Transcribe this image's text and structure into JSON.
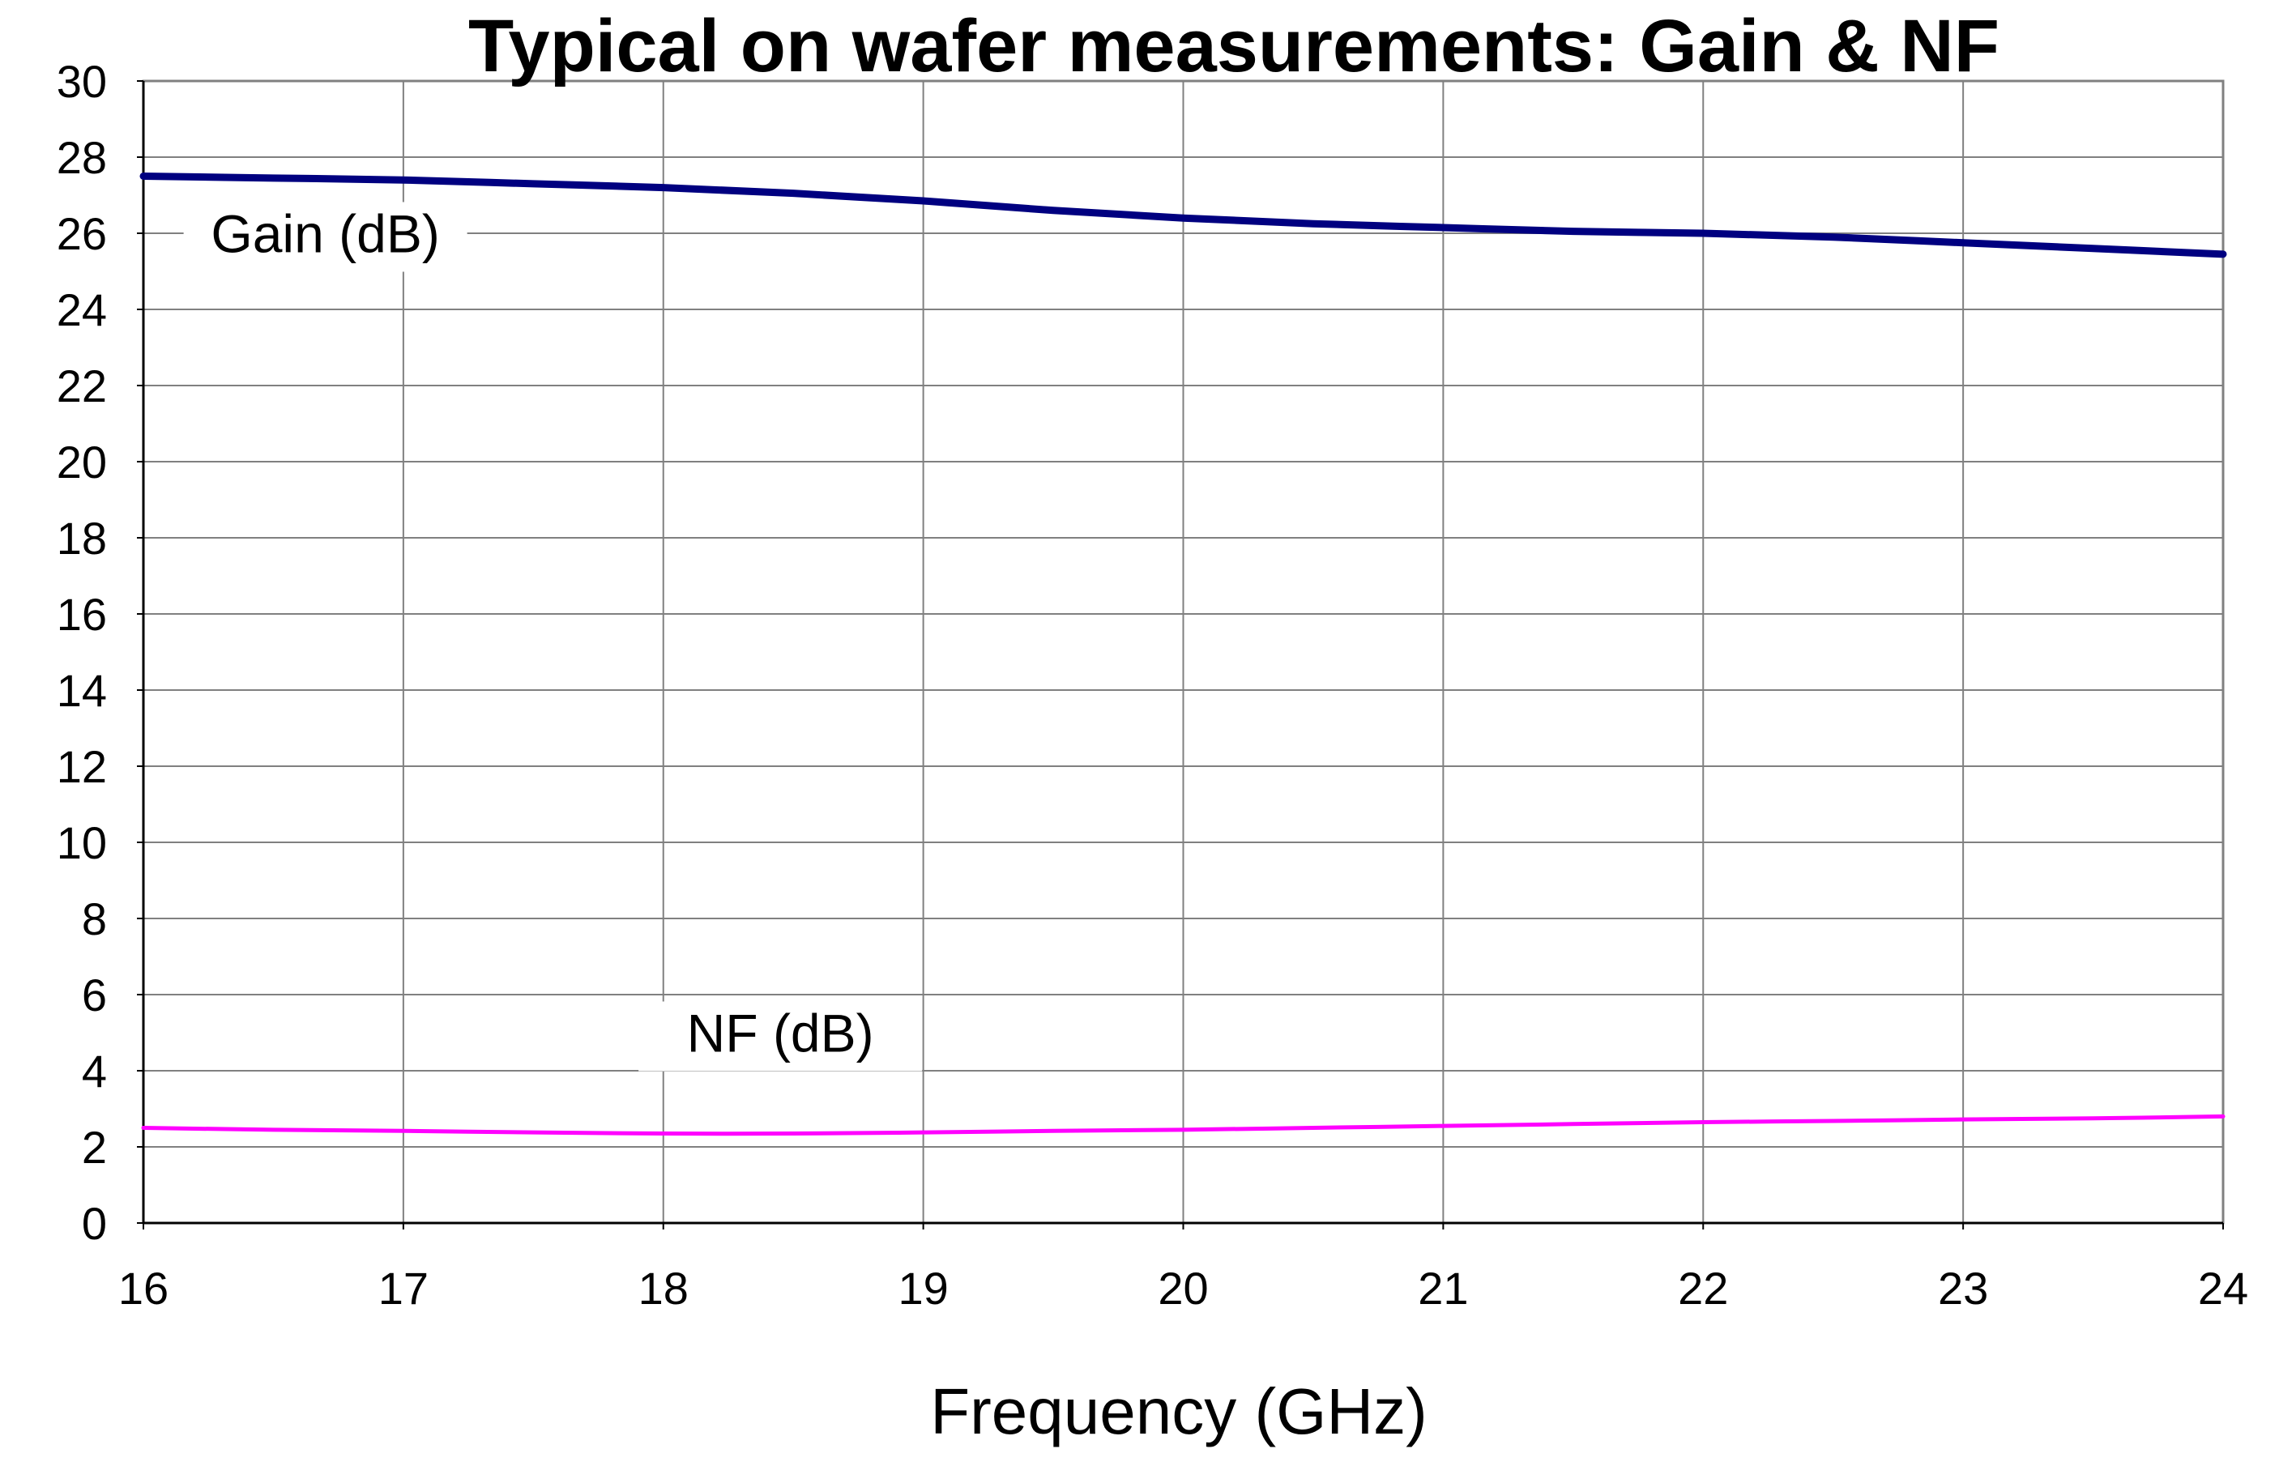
{
  "chart_data": {
    "type": "line",
    "title": "Typical on wafer measurements: Gain & NF",
    "xlabel": "Frequency (GHz)",
    "ylabel": "",
    "xlim": [
      16,
      24
    ],
    "ylim": [
      0,
      30
    ],
    "x_ticks": [
      "16",
      "17",
      "18",
      "19",
      "20",
      "21",
      "22",
      "23",
      "24"
    ],
    "y_ticks": [
      "0",
      "2",
      "4",
      "6",
      "8",
      "10",
      "12",
      "14",
      "16",
      "18",
      "20",
      "22",
      "24",
      "26",
      "28",
      "30"
    ],
    "grid": true,
    "series": [
      {
        "name": "Gain (dB)",
        "color": "#000080",
        "x": [
          16,
          16.5,
          17,
          17.5,
          18,
          18.5,
          19,
          19.5,
          20,
          20.5,
          21,
          21.5,
          22,
          22.5,
          23,
          23.5,
          24
        ],
        "y": [
          27.5,
          27.45,
          27.4,
          27.3,
          27.2,
          27.05,
          26.85,
          26.6,
          26.4,
          26.25,
          26.15,
          26.05,
          26.0,
          25.9,
          25.75,
          25.6,
          25.45
        ]
      },
      {
        "name": "NF (dB)",
        "color": "#FF00FF",
        "x": [
          16,
          16.5,
          17,
          17.5,
          18,
          18.5,
          19,
          19.5,
          20,
          20.5,
          21,
          21.5,
          22,
          22.5,
          23,
          23.5,
          24
        ],
        "y": [
          2.5,
          2.45,
          2.42,
          2.38,
          2.35,
          2.35,
          2.38,
          2.42,
          2.45,
          2.5,
          2.55,
          2.6,
          2.65,
          2.68,
          2.72,
          2.75,
          2.8
        ]
      }
    ]
  }
}
